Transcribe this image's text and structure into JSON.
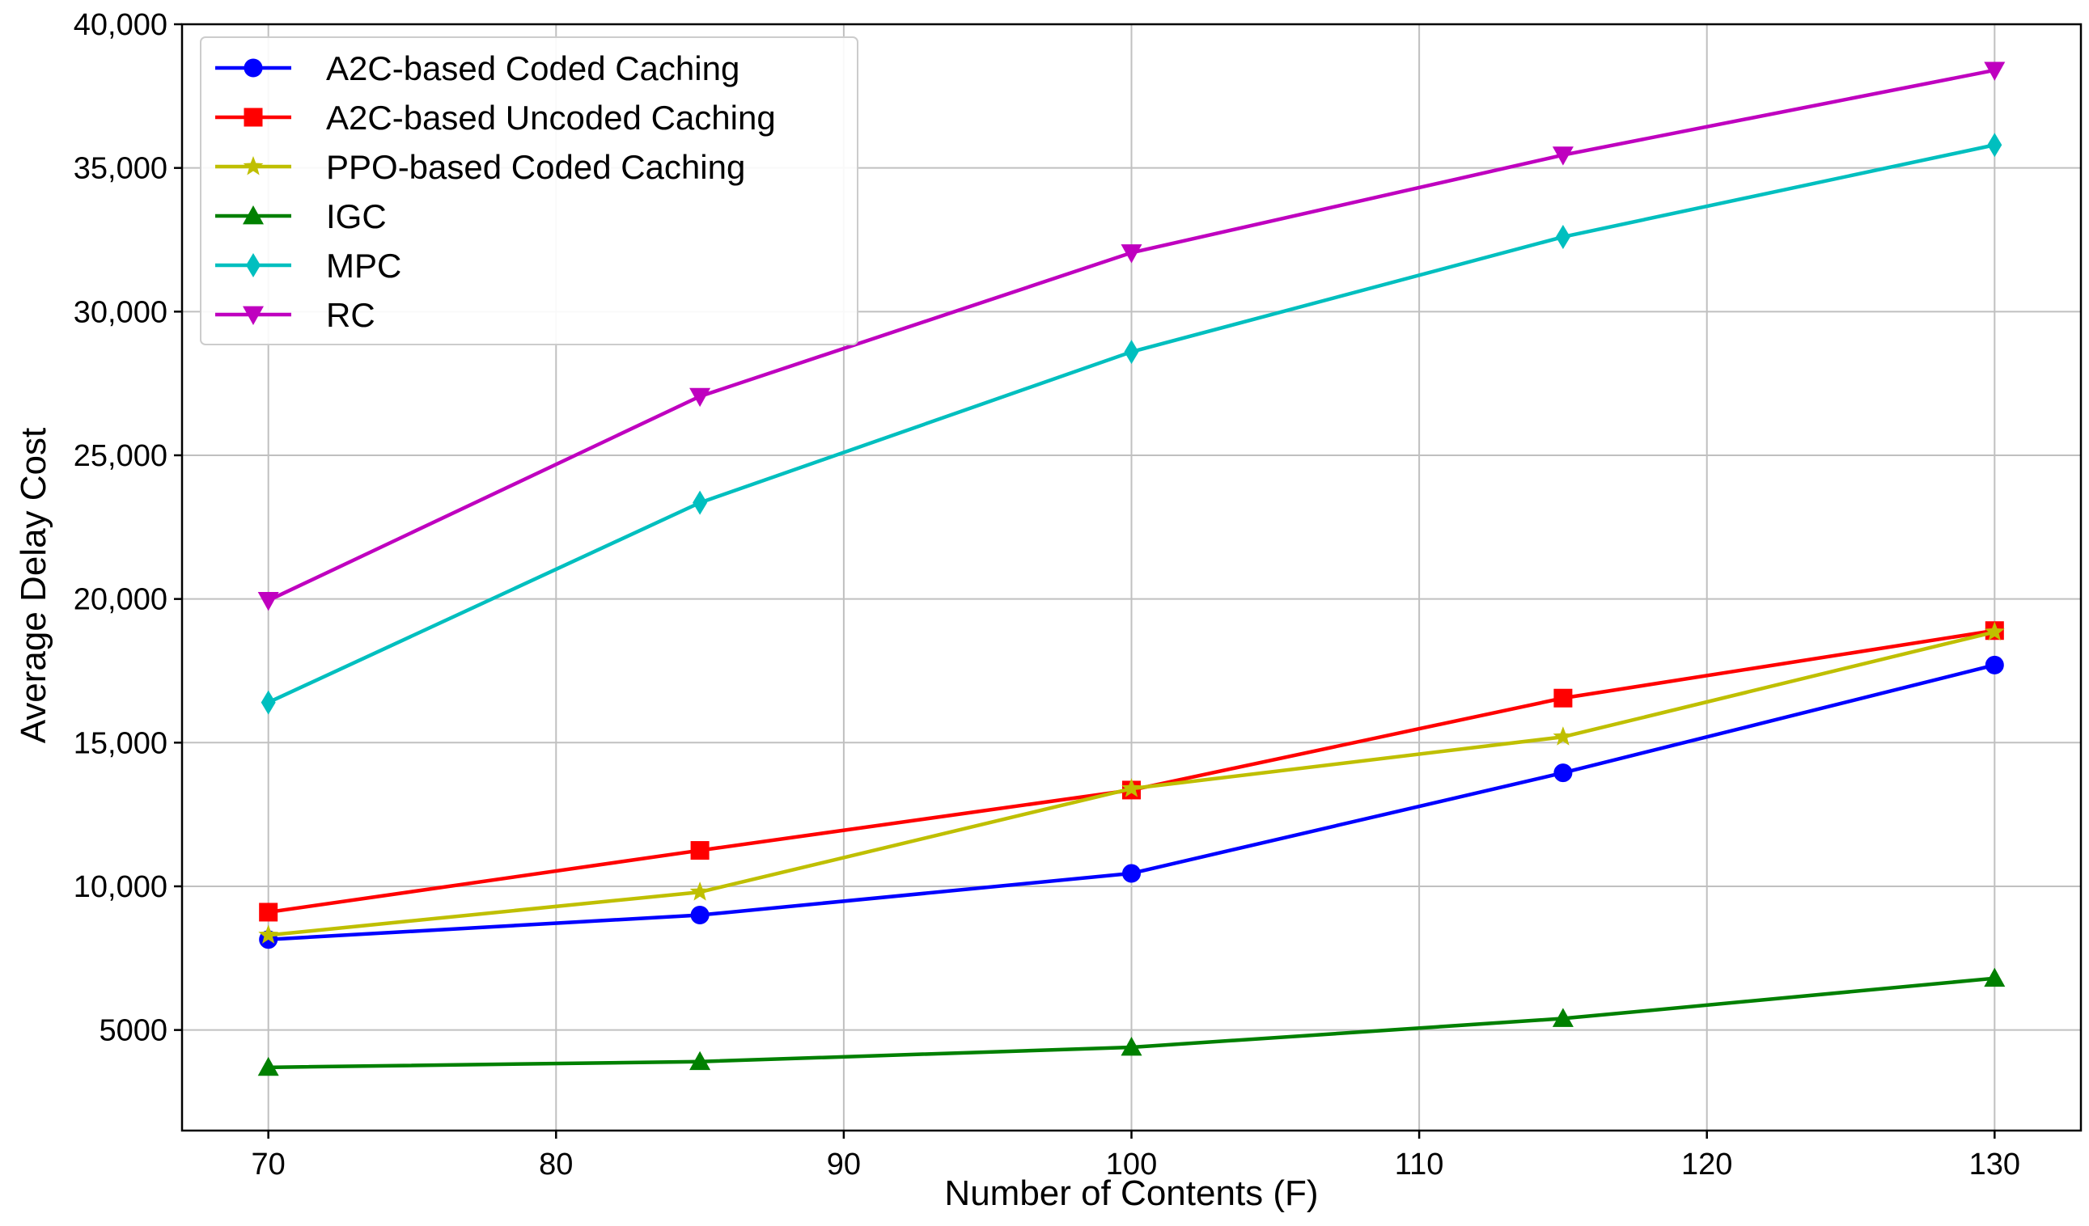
{
  "chart_data": {
    "type": "line",
    "title": "",
    "xlabel": "Number of Contents (F)",
    "ylabel": "Average Delay Cost",
    "xlim": [
      67,
      133
    ],
    "ylim": [
      1500,
      40000
    ],
    "x_ticks": [
      {
        "value": 70,
        "label": "70"
      },
      {
        "value": 80,
        "label": "80"
      },
      {
        "value": 90,
        "label": "90"
      },
      {
        "value": 100,
        "label": "100"
      },
      {
        "value": 110,
        "label": "110"
      },
      {
        "value": 120,
        "label": "120"
      },
      {
        "value": 130,
        "label": "130"
      }
    ],
    "y_ticks": [
      {
        "value": 5000,
        "label": "5000"
      },
      {
        "value": 10000,
        "label": "10,000"
      },
      {
        "value": 15000,
        "label": "15,000"
      },
      {
        "value": 20000,
        "label": "20,000"
      },
      {
        "value": 25000,
        "label": "25,000"
      },
      {
        "value": 30000,
        "label": "30,000"
      },
      {
        "value": 35000,
        "label": "35,000"
      },
      {
        "value": 40000,
        "label": "40,000"
      }
    ],
    "grid": true,
    "legend_position": "top-left",
    "x": [
      70,
      85,
      100,
      115,
      130
    ],
    "series": [
      {
        "name": "A2C-based Coded Caching",
        "color": "#0000ff",
        "marker": "circle",
        "values": [
          8150,
          9000,
          10450,
          13950,
          17700
        ]
      },
      {
        "name": "A2C-based Uncoded Caching",
        "color": "#ff0000",
        "marker": "square",
        "values": [
          9100,
          11250,
          13350,
          16550,
          18900
        ]
      },
      {
        "name": "PPO-based Coded Caching",
        "color": "#bfbf00",
        "marker": "star",
        "values": [
          8300,
          9800,
          13400,
          15200,
          18850
        ]
      },
      {
        "name": "IGC",
        "color": "#008000",
        "marker": "triangle-up",
        "values": [
          3700,
          3900,
          4400,
          5400,
          6800
        ]
      },
      {
        "name": "MPC",
        "color": "#00bfbf",
        "marker": "diamond",
        "values": [
          16400,
          23350,
          28600,
          32600,
          35800
        ]
      },
      {
        "name": "RC",
        "color": "#bf00bf",
        "marker": "triangle-down",
        "values": [
          19950,
          27050,
          32050,
          35450,
          38400
        ]
      }
    ]
  }
}
